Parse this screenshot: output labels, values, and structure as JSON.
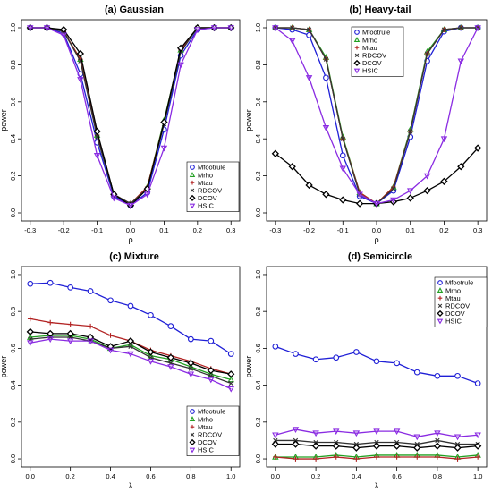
{
  "chart_data": [
    {
      "type": "line",
      "title": "(a) Gaussian",
      "xlabel": "ρ",
      "ylabel": "power",
      "xlim": [
        -0.3,
        0.3
      ],
      "ylim": [
        0.0,
        1.0
      ],
      "x_ticks": [
        -0.3,
        -0.2,
        -0.1,
        0.0,
        0.1,
        0.2,
        0.3
      ],
      "y_ticks": [
        0.0,
        0.2,
        0.4,
        0.6,
        0.8,
        1.0
      ],
      "x_tick_labels": [
        "-0.3",
        "-0.2",
        "-0.1",
        "0.0",
        "0.1",
        "0.2",
        "0.3"
      ],
      "y_tick_labels": [
        "0.0",
        "0.2",
        "0.4",
        "0.6",
        "0.8",
        "1.0"
      ],
      "legend_position": "bottom-right",
      "x": [
        -0.3,
        -0.25,
        -0.2,
        -0.15,
        -0.1,
        -0.05,
        0.0,
        0.05,
        0.1,
        0.15,
        0.2,
        0.25,
        0.3
      ],
      "series": [
        {
          "name": "Mfootrule",
          "values": [
            1.0,
            1.0,
            0.97,
            0.75,
            0.38,
            0.09,
            0.04,
            0.11,
            0.45,
            0.85,
            0.99,
            1.0,
            1.0
          ]
        },
        {
          "name": "Mrho",
          "values": [
            1.0,
            1.0,
            0.98,
            0.83,
            0.42,
            0.1,
            0.05,
            0.14,
            0.5,
            0.88,
            1.0,
            1.0,
            1.0
          ]
        },
        {
          "name": "Mtau",
          "values": [
            1.0,
            1.0,
            0.98,
            0.83,
            0.42,
            0.1,
            0.05,
            0.14,
            0.49,
            0.88,
            1.0,
            1.0,
            1.0
          ]
        },
        {
          "name": "RDCOV",
          "values": [
            1.0,
            1.0,
            0.98,
            0.82,
            0.41,
            0.1,
            0.05,
            0.13,
            0.48,
            0.87,
            1.0,
            1.0,
            1.0
          ]
        },
        {
          "name": "DCOV",
          "values": [
            1.0,
            1.0,
            0.99,
            0.86,
            0.44,
            0.1,
            0.04,
            0.13,
            0.49,
            0.89,
            1.0,
            1.0,
            1.0
          ]
        },
        {
          "name": "HSIC",
          "values": [
            1.0,
            1.0,
            0.96,
            0.72,
            0.31,
            0.08,
            0.04,
            0.1,
            0.35,
            0.8,
            0.99,
            1.0,
            1.0
          ]
        }
      ]
    },
    {
      "type": "line",
      "title": "(b) Heavy-tail",
      "xlabel": "ρ",
      "ylabel": "power",
      "xlim": [
        -0.3,
        0.3
      ],
      "ylim": [
        0.0,
        1.0
      ],
      "x_ticks": [
        -0.3,
        -0.2,
        -0.1,
        0.0,
        0.1,
        0.2,
        0.3
      ],
      "y_ticks": [
        0.0,
        0.2,
        0.4,
        0.6,
        0.8,
        1.0
      ],
      "x_tick_labels": [
        "-0.3",
        "-0.2",
        "-0.1",
        "0.0",
        "0.1",
        "0.2",
        "0.3"
      ],
      "y_tick_labels": [
        "0.0",
        "0.2",
        "0.4",
        "0.6",
        "0.8",
        "1.0"
      ],
      "legend_position": "top-center",
      "x": [
        -0.3,
        -0.25,
        -0.2,
        -0.15,
        -0.1,
        -0.05,
        0.0,
        0.05,
        0.1,
        0.15,
        0.2,
        0.25,
        0.3
      ],
      "series": [
        {
          "name": "Mfootrule",
          "values": [
            1.0,
            0.99,
            0.96,
            0.73,
            0.31,
            0.09,
            0.05,
            0.12,
            0.41,
            0.82,
            0.98,
            1.0,
            1.0
          ]
        },
        {
          "name": "Mrho",
          "values": [
            1.0,
            1.0,
            0.99,
            0.84,
            0.41,
            0.11,
            0.05,
            0.14,
            0.45,
            0.87,
            0.99,
            1.0,
            1.0
          ]
        },
        {
          "name": "Mtau",
          "values": [
            1.0,
            1.0,
            0.99,
            0.83,
            0.4,
            0.11,
            0.05,
            0.14,
            0.44,
            0.86,
            0.99,
            1.0,
            1.0
          ]
        },
        {
          "name": "RDCOV",
          "values": [
            1.0,
            1.0,
            0.99,
            0.83,
            0.4,
            0.1,
            0.05,
            0.13,
            0.44,
            0.86,
            0.99,
            1.0,
            1.0
          ]
        },
        {
          "name": "DCOV",
          "values": [
            0.32,
            0.25,
            0.15,
            0.1,
            0.07,
            0.05,
            0.05,
            0.06,
            0.08,
            0.12,
            0.17,
            0.25,
            0.35
          ]
        },
        {
          "name": "HSIC",
          "values": [
            1.0,
            0.93,
            0.73,
            0.46,
            0.24,
            0.1,
            0.05,
            0.07,
            0.12,
            0.2,
            0.4,
            0.82,
            1.0
          ]
        }
      ]
    },
    {
      "type": "line",
      "title": "(c) Mixture",
      "xlabel": "λ",
      "ylabel": "power",
      "xlim": [
        0.0,
        1.0
      ],
      "ylim": [
        0.0,
        1.0
      ],
      "x_ticks": [
        0.0,
        0.2,
        0.4,
        0.6,
        0.8,
        1.0
      ],
      "y_ticks": [
        0.0,
        0.2,
        0.4,
        0.6,
        0.8,
        1.0
      ],
      "x_tick_labels": [
        "0.0",
        "0.2",
        "0.4",
        "0.6",
        "0.8",
        "1.0"
      ],
      "y_tick_labels": [
        "0.0",
        "0.2",
        "0.4",
        "0.6",
        "0.8",
        "1.0"
      ],
      "legend_position": "bottom-left",
      "x": [
        0.0,
        0.1,
        0.2,
        0.3,
        0.4,
        0.5,
        0.6,
        0.7,
        0.8,
        0.9,
        1.0
      ],
      "series": [
        {
          "name": "Mfootrule",
          "values": [
            0.95,
            0.955,
            0.93,
            0.91,
            0.86,
            0.83,
            0.78,
            0.72,
            0.65,
            0.64,
            0.57
          ]
        },
        {
          "name": "Mrho",
          "values": [
            0.66,
            0.67,
            0.67,
            0.65,
            0.6,
            0.62,
            0.56,
            0.54,
            0.5,
            0.46,
            0.43
          ]
        },
        {
          "name": "Mtau",
          "values": [
            0.76,
            0.74,
            0.73,
            0.72,
            0.67,
            0.64,
            0.59,
            0.56,
            0.53,
            0.49,
            0.46
          ]
        },
        {
          "name": "RDCOV",
          "values": [
            0.65,
            0.66,
            0.66,
            0.64,
            0.6,
            0.61,
            0.55,
            0.52,
            0.49,
            0.45,
            0.41
          ]
        },
        {
          "name": "DCOV",
          "values": [
            0.69,
            0.68,
            0.68,
            0.66,
            0.61,
            0.64,
            0.58,
            0.55,
            0.52,
            0.48,
            0.46
          ]
        },
        {
          "name": "HSIC",
          "values": [
            0.63,
            0.65,
            0.64,
            0.64,
            0.59,
            0.57,
            0.53,
            0.5,
            0.46,
            0.43,
            0.38
          ]
        }
      ]
    },
    {
      "type": "line",
      "title": "(d) Semicircle",
      "xlabel": "λ",
      "ylabel": "power",
      "xlim": [
        0.0,
        1.0
      ],
      "ylim": [
        0.0,
        1.0
      ],
      "x_ticks": [
        0.0,
        0.2,
        0.4,
        0.6,
        0.8,
        1.0
      ],
      "y_ticks": [
        0.0,
        0.2,
        0.4,
        0.6,
        0.8,
        1.0
      ],
      "x_tick_labels": [
        "0.0",
        "0.2",
        "0.4",
        "0.6",
        "0.8",
        "1.0"
      ],
      "y_tick_labels": [
        "0.0",
        "0.2",
        "0.4",
        "0.6",
        "0.8",
        "1.0"
      ],
      "legend_position": "top-right",
      "x": [
        0.0,
        0.1,
        0.2,
        0.3,
        0.4,
        0.5,
        0.6,
        0.7,
        0.8,
        0.9,
        1.0
      ],
      "series": [
        {
          "name": "Mfootrule",
          "values": [
            0.61,
            0.57,
            0.54,
            0.55,
            0.58,
            0.53,
            0.52,
            0.47,
            0.45,
            0.45,
            0.41
          ]
        },
        {
          "name": "Mrho",
          "values": [
            0.01,
            0.01,
            0.01,
            0.02,
            0.01,
            0.02,
            0.02,
            0.02,
            0.02,
            0.01,
            0.02
          ]
        },
        {
          "name": "Mtau",
          "values": [
            0.01,
            0.0,
            0.0,
            0.01,
            0.0,
            0.01,
            0.01,
            0.01,
            0.01,
            0.0,
            0.01
          ]
        },
        {
          "name": "RDCOV",
          "values": [
            0.1,
            0.1,
            0.09,
            0.09,
            0.08,
            0.09,
            0.09,
            0.08,
            0.1,
            0.08,
            0.08
          ]
        },
        {
          "name": "DCOV",
          "values": [
            0.08,
            0.08,
            0.07,
            0.07,
            0.06,
            0.07,
            0.07,
            0.06,
            0.07,
            0.06,
            0.07
          ]
        },
        {
          "name": "HSIC",
          "values": [
            0.13,
            0.16,
            0.14,
            0.15,
            0.14,
            0.15,
            0.15,
            0.12,
            0.14,
            0.12,
            0.13
          ]
        }
      ]
    }
  ],
  "series_styles": [
    {
      "name": "Mfootrule",
      "color": "#1f1fd6",
      "marker": "circle"
    },
    {
      "name": "Mrho",
      "color": "#22a022",
      "marker": "triangle-up"
    },
    {
      "name": "Mtau",
      "color": "#b22222",
      "marker": "plus"
    },
    {
      "name": "RDCOV",
      "color": "#333333",
      "marker": "cross"
    },
    {
      "name": "DCOV",
      "color": "#000000",
      "marker": "diamond"
    },
    {
      "name": "HSIC",
      "color": "#8a2be2",
      "marker": "triangle-down"
    }
  ]
}
